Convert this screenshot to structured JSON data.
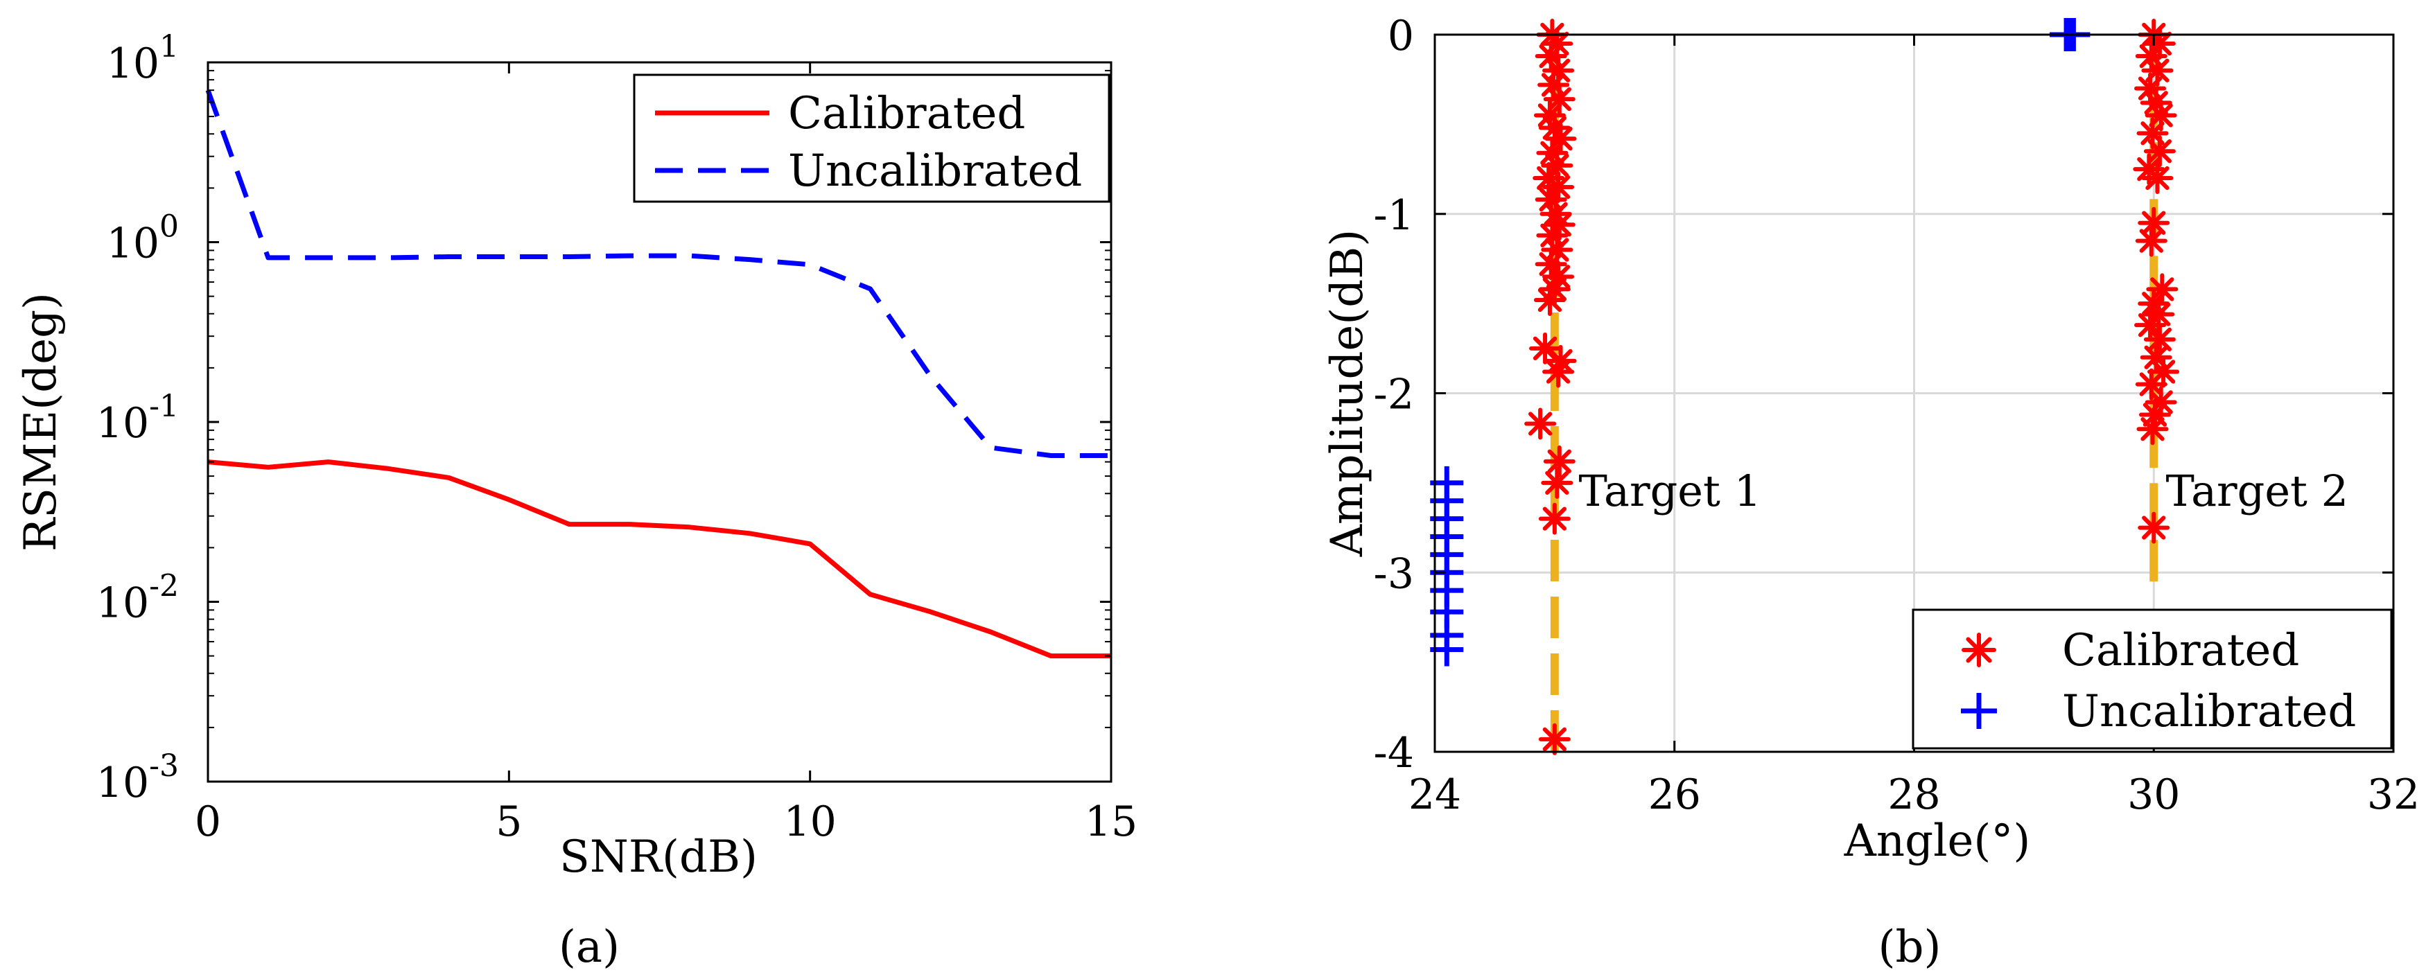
{
  "colors": {
    "calibrated": "#ff0000",
    "uncalibrated": "#0000ff",
    "truth": "#edb120",
    "grid": "#d9d9d9",
    "axis": "#000000"
  },
  "chart_data": [
    {
      "type": "line",
      "caption": "(a)",
      "xlabel": "SNR(dB)",
      "ylabel": "RSME(deg)",
      "xlim": [
        0,
        15
      ],
      "ylim": [
        0.001,
        10
      ],
      "yscale": "log",
      "grid": false,
      "legend_placement": "top-right",
      "xticks": [
        {
          "value": 0,
          "label": "0"
        },
        {
          "value": 5,
          "label": "5"
        },
        {
          "value": 10,
          "label": "10"
        },
        {
          "value": 15,
          "label": "15"
        }
      ],
      "yticks": [
        {
          "value": 0.001,
          "base": "10",
          "exp": "-3"
        },
        {
          "value": 0.01,
          "base": "10",
          "exp": "-2"
        },
        {
          "value": 0.1,
          "base": "10",
          "exp": "-1"
        },
        {
          "value": 1,
          "base": "10",
          "exp": "0"
        },
        {
          "value": 10,
          "base": "10",
          "exp": "1"
        }
      ],
      "x": [
        0,
        1,
        2,
        3,
        4,
        5,
        6,
        7,
        8,
        9,
        10,
        11,
        12,
        13,
        14,
        15
      ],
      "series": [
        {
          "name": "Calibrated",
          "style": "solid",
          "values": [
            0.06,
            0.056,
            0.06,
            0.055,
            0.049,
            0.037,
            0.027,
            0.027,
            0.026,
            0.024,
            0.021,
            0.011,
            0.0088,
            0.0068,
            0.005,
            0.005
          ]
        },
        {
          "name": "Uncalibrated",
          "style": "dashed",
          "values": [
            7.0,
            0.82,
            0.82,
            0.82,
            0.83,
            0.83,
            0.83,
            0.84,
            0.84,
            0.8,
            0.75,
            0.55,
            0.18,
            0.072,
            0.065,
            0.065
          ]
        }
      ]
    },
    {
      "type": "scatter",
      "caption": "(b)",
      "xlabel": "Angle(°)",
      "ylabel": "Amplitude(dB)",
      "xlim": [
        24,
        32
      ],
      "ylim": [
        -4,
        0
      ],
      "grid": true,
      "legend_placement": "bottom-right",
      "xticks": [
        {
          "value": 24,
          "label": "24"
        },
        {
          "value": 26,
          "label": "26"
        },
        {
          "value": 28,
          "label": "28"
        },
        {
          "value": 30,
          "label": "30"
        },
        {
          "value": 32,
          "label": "32"
        }
      ],
      "yticks": [
        {
          "value": 0,
          "label": "0"
        },
        {
          "value": -1,
          "label": "-1"
        },
        {
          "value": -2,
          "label": "-2"
        },
        {
          "value": -3,
          "label": "-3"
        },
        {
          "value": -4,
          "label": "-4"
        }
      ],
      "reference_lines": [
        {
          "x": 25.0,
          "y_from": -4,
          "y_to": 0
        },
        {
          "x": 30.0,
          "y_from": -3.05,
          "y_to": 0
        }
      ],
      "annotations": [
        {
          "text": "Target 1",
          "x": 25.2,
          "y": -2.55
        },
        {
          "text": "Target 2",
          "x": 30.1,
          "y": -2.55
        }
      ],
      "series": [
        {
          "name": "Calibrated",
          "marker": "asterisk",
          "points": [
            [
              24.98,
              0.0
            ],
            [
              25.02,
              -0.05
            ],
            [
              24.97,
              -0.12
            ],
            [
              25.03,
              -0.2
            ],
            [
              24.99,
              -0.28
            ],
            [
              25.04,
              -0.36
            ],
            [
              24.96,
              -0.45
            ],
            [
              25.0,
              -0.52
            ],
            [
              25.05,
              -0.58
            ],
            [
              24.98,
              -0.66
            ],
            [
              25.02,
              -0.73
            ],
            [
              24.95,
              -0.8
            ],
            [
              25.03,
              -0.85
            ],
            [
              24.97,
              -0.92
            ],
            [
              25.01,
              -1.0
            ],
            [
              25.04,
              -1.06
            ],
            [
              24.98,
              -1.12
            ],
            [
              25.02,
              -1.2
            ],
            [
              24.97,
              -1.28
            ],
            [
              25.03,
              -1.35
            ],
            [
              25.0,
              -1.42
            ],
            [
              24.96,
              -1.48
            ],
            [
              24.92,
              -1.75
            ],
            [
              25.05,
              -1.82
            ],
            [
              25.03,
              -1.88
            ],
            [
              24.88,
              -2.17
            ],
            [
              25.04,
              -2.38
            ],
            [
              25.02,
              -2.5
            ],
            [
              25.0,
              -2.7
            ],
            [
              25.0,
              -3.93
            ],
            [
              30.0,
              0.0
            ],
            [
              30.05,
              -0.05
            ],
            [
              29.98,
              -0.12
            ],
            [
              30.03,
              -0.2
            ],
            [
              29.97,
              -0.3
            ],
            [
              30.02,
              -0.38
            ],
            [
              30.06,
              -0.45
            ],
            [
              29.99,
              -0.55
            ],
            [
              30.05,
              -0.65
            ],
            [
              29.96,
              -0.75
            ],
            [
              30.03,
              -0.8
            ],
            [
              30.0,
              -1.05
            ],
            [
              29.98,
              -1.15
            ],
            [
              30.07,
              -1.42
            ],
            [
              30.0,
              -1.5
            ],
            [
              30.04,
              -1.56
            ],
            [
              29.97,
              -1.62
            ],
            [
              30.05,
              -1.7
            ],
            [
              30.02,
              -1.8
            ],
            [
              30.08,
              -1.88
            ],
            [
              29.98,
              -1.95
            ],
            [
              30.06,
              -2.05
            ],
            [
              30.01,
              -2.12
            ],
            [
              29.99,
              -2.2
            ],
            [
              30.0,
              -2.75
            ]
          ]
        },
        {
          "name": "Uncalibrated",
          "marker": "plus",
          "points": [
            [
              29.27,
              0.0
            ],
            [
              29.3,
              0.0
            ],
            [
              29.33,
              0.0
            ],
            [
              24.1,
              -2.5
            ],
            [
              24.1,
              -2.6
            ],
            [
              24.1,
              -2.7
            ],
            [
              24.1,
              -2.8
            ],
            [
              24.1,
              -2.9
            ],
            [
              24.1,
              -3.0
            ],
            [
              24.1,
              -3.1
            ],
            [
              24.1,
              -3.22
            ],
            [
              24.1,
              -3.35
            ],
            [
              24.1,
              -3.43
            ]
          ]
        }
      ]
    }
  ]
}
